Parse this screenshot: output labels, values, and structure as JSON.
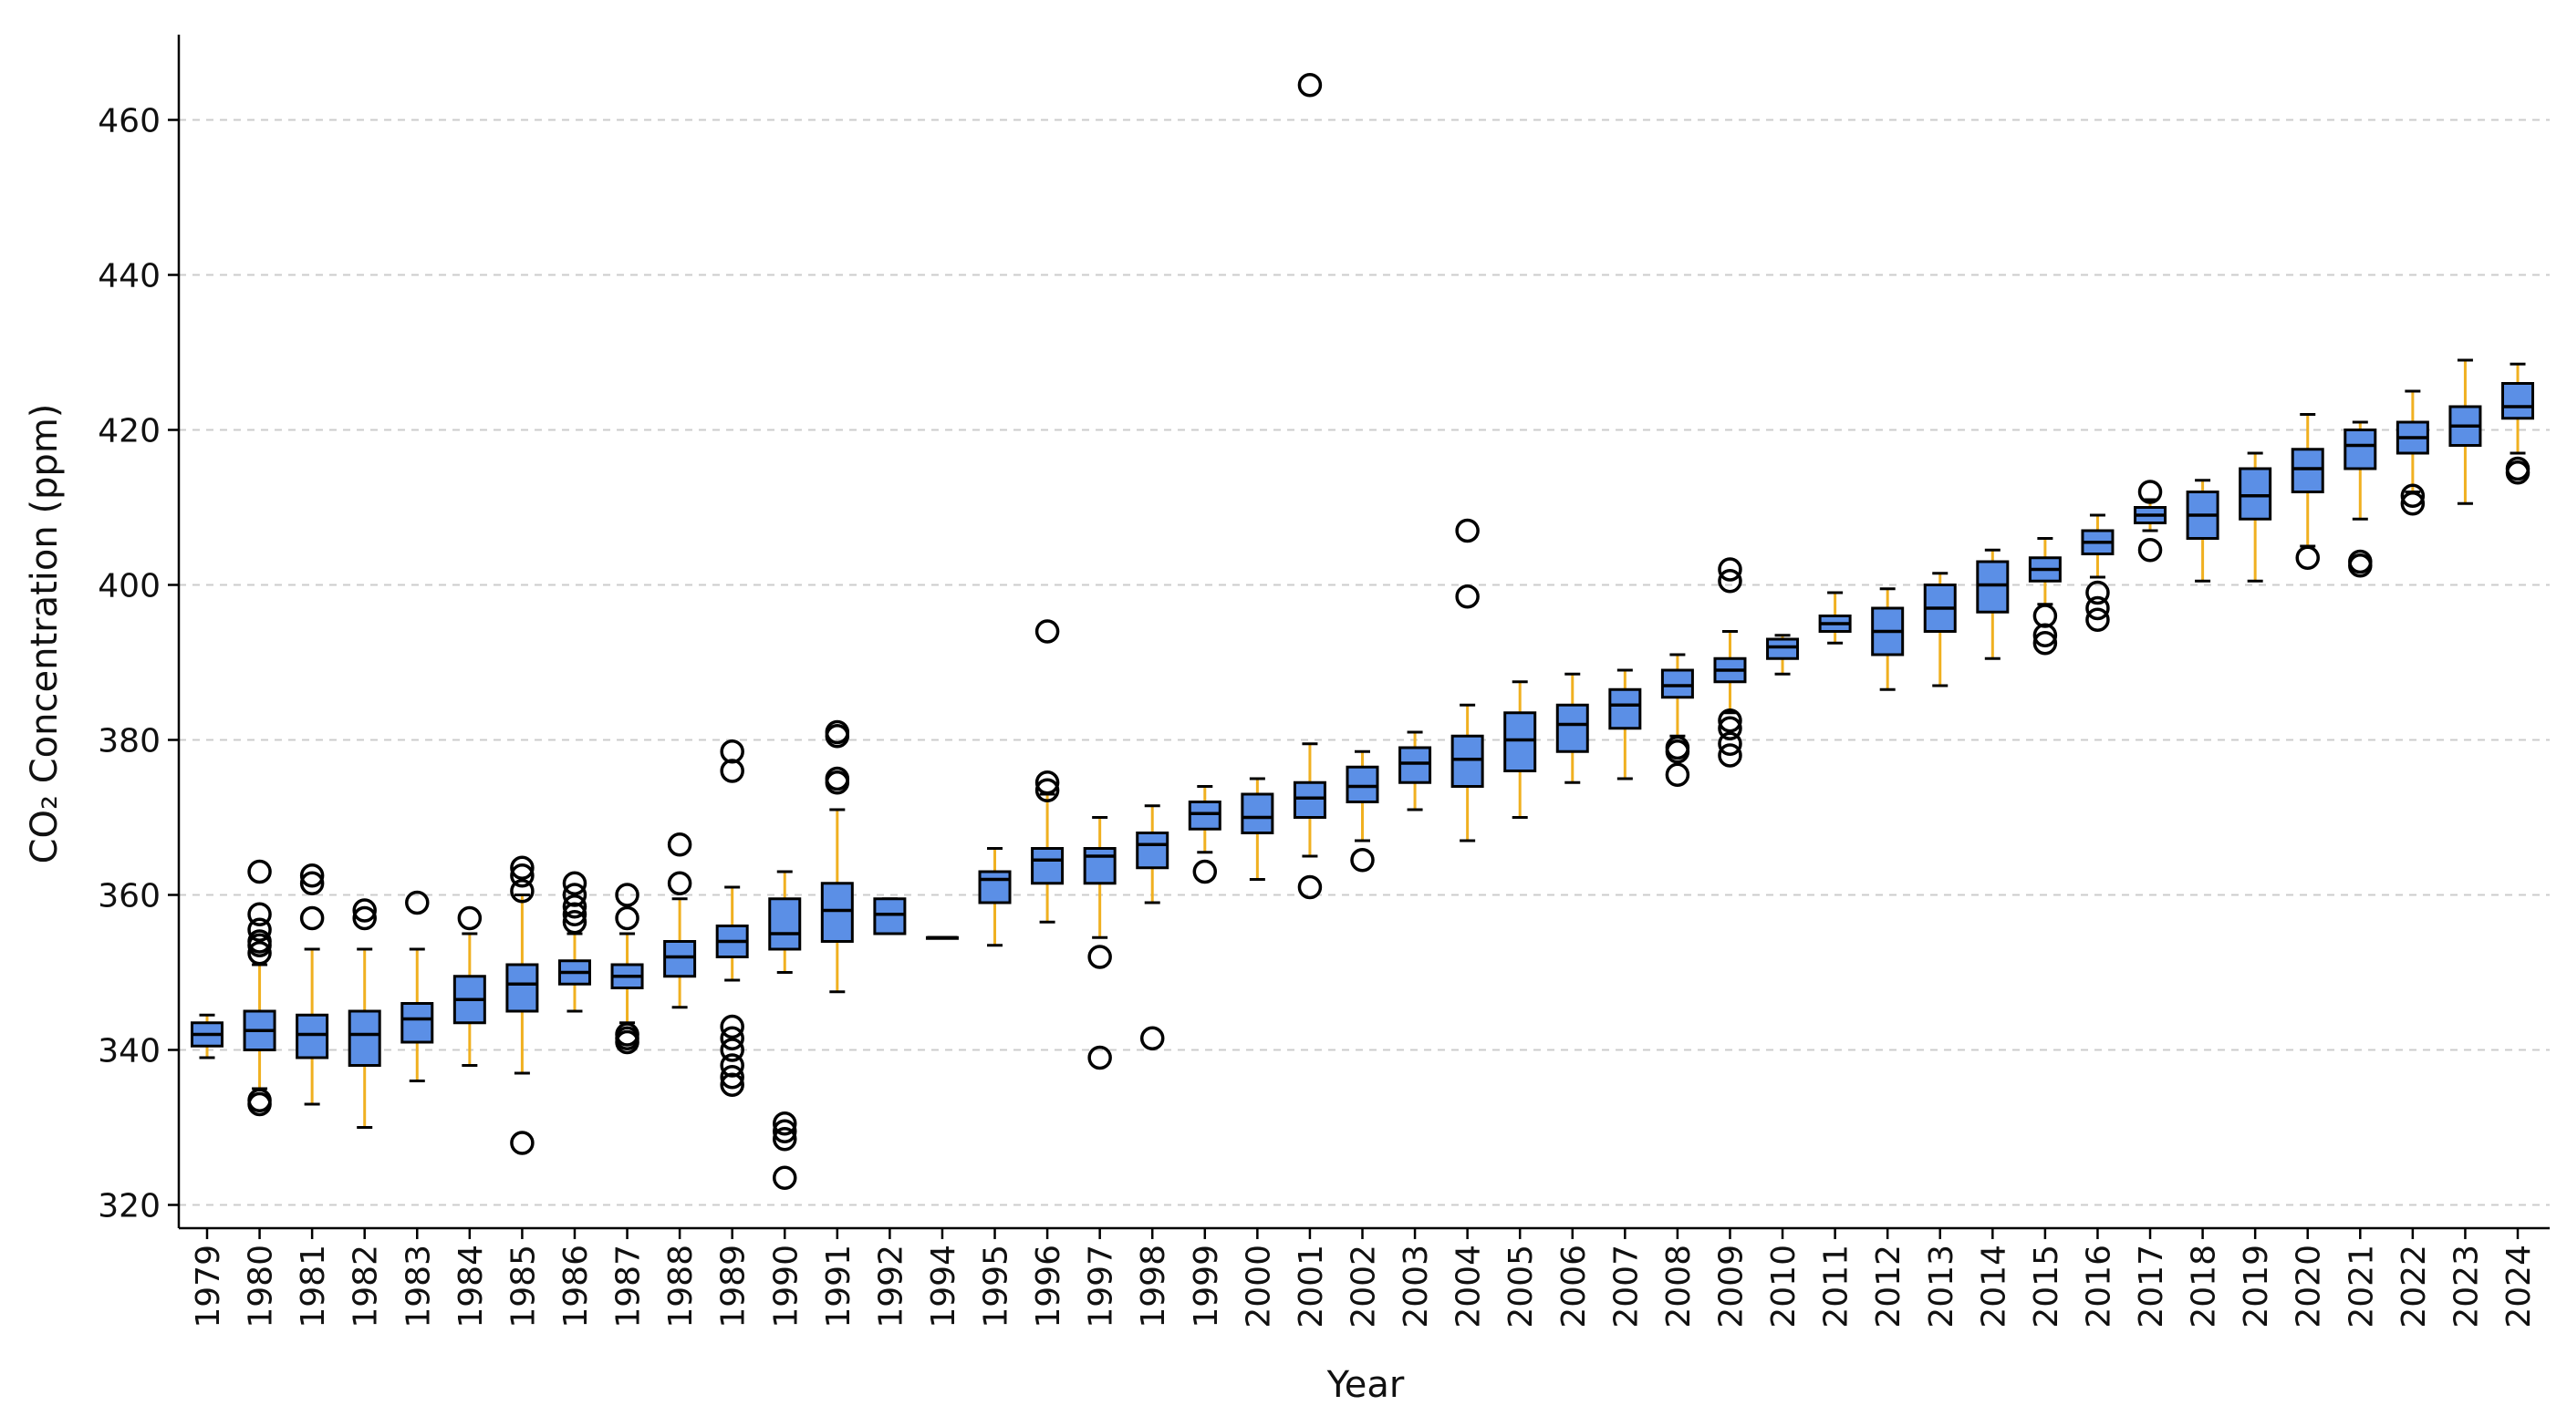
{
  "chart_data": {
    "type": "boxplot",
    "title": "",
    "xlabel": "Year",
    "ylabel": "CO₂ Concentration (ppm)",
    "ylim": [
      317,
      471
    ],
    "yticks": [
      320,
      340,
      360,
      380,
      400,
      420,
      440,
      460
    ],
    "grid": "horizontal dashed",
    "colors": {
      "box_fill": "#5b8fe6",
      "whisker": "#f0b020",
      "cap": "#000000",
      "median": "#000000",
      "grid": "#cccccc"
    },
    "categories": [
      "1979",
      "1980",
      "1981",
      "1982",
      "1983",
      "1984",
      "1985",
      "1986",
      "1987",
      "1988",
      "1989",
      "1990",
      "1991",
      "1992",
      "1994",
      "1995",
      "1996",
      "1997",
      "1998",
      "1999",
      "2000",
      "2001",
      "2002",
      "2003",
      "2004",
      "2005",
      "2006",
      "2007",
      "2008",
      "2009",
      "2010",
      "2011",
      "2012",
      "2013",
      "2014",
      "2015",
      "2016",
      "2017",
      "2018",
      "2019",
      "2020",
      "2021",
      "2022",
      "2023",
      "2024"
    ],
    "boxes": [
      {
        "year": "1979",
        "whislo": 339.0,
        "q1": 340.5,
        "med": 342.0,
        "q3": 343.5,
        "whishi": 344.5,
        "fliers": []
      },
      {
        "year": "1980",
        "whislo": 335.0,
        "q1": 340.0,
        "med": 342.5,
        "q3": 345.0,
        "whishi": 351.0,
        "fliers": [
          333.0,
          333.5,
          352.5,
          353.5,
          354.0,
          355.5,
          357.5,
          363.0
        ]
      },
      {
        "year": "1981",
        "whislo": 333.0,
        "q1": 339.0,
        "med": 342.0,
        "q3": 344.5,
        "whishi": 353.0,
        "fliers": [
          357.0,
          361.5,
          362.5
        ]
      },
      {
        "year": "1982",
        "whislo": 330.0,
        "q1": 338.0,
        "med": 342.0,
        "q3": 345.0,
        "whishi": 353.0,
        "fliers": [
          357.0,
          358.0
        ]
      },
      {
        "year": "1983",
        "whislo": 336.0,
        "q1": 341.0,
        "med": 344.0,
        "q3": 346.0,
        "whishi": 353.0,
        "fliers": [
          359.0
        ]
      },
      {
        "year": "1984",
        "whislo": 338.0,
        "q1": 343.5,
        "med": 346.5,
        "q3": 349.5,
        "whishi": 355.0,
        "fliers": [
          357.0
        ]
      },
      {
        "year": "1985",
        "whislo": 337.0,
        "q1": 345.0,
        "med": 348.5,
        "q3": 351.0,
        "whishi": 360.0,
        "fliers": [
          328.0,
          360.5,
          362.5,
          363.5
        ]
      },
      {
        "year": "1986",
        "whislo": 345.0,
        "q1": 348.5,
        "med": 350.0,
        "q3": 351.5,
        "whishi": 355.0,
        "fliers": [
          356.5,
          357.5,
          358.5,
          360.0,
          361.5
        ]
      },
      {
        "year": "1987",
        "whislo": 343.5,
        "q1": 348.0,
        "med": 349.5,
        "q3": 351.0,
        "whishi": 355.0,
        "fliers": [
          341.0,
          341.5,
          342.0,
          357.0,
          360.0
        ]
      },
      {
        "year": "1988",
        "whislo": 345.5,
        "q1": 349.5,
        "med": 352.0,
        "q3": 354.0,
        "whishi": 359.5,
        "fliers": [
          361.5,
          366.5
        ]
      },
      {
        "year": "1989",
        "whislo": 349.0,
        "q1": 352.0,
        "med": 354.0,
        "q3": 356.0,
        "whishi": 361.0,
        "fliers": [
          335.5,
          336.5,
          338.0,
          340.0,
          341.5,
          343.0,
          376.0,
          378.5
        ]
      },
      {
        "year": "1990",
        "whislo": 350.0,
        "q1": 353.0,
        "med": 355.0,
        "q3": 359.5,
        "whishi": 363.0,
        "fliers": [
          323.5,
          328.5,
          329.5,
          330.5
        ]
      },
      {
        "year": "1991",
        "whislo": 347.5,
        "q1": 354.0,
        "med": 358.0,
        "q3": 361.5,
        "whishi": 371.0,
        "fliers": [
          374.5,
          375.0,
          380.5,
          381.0
        ]
      },
      {
        "year": "1992",
        "whislo": 355.0,
        "q1": 355.0,
        "med": 357.5,
        "q3": 359.5,
        "whishi": 359.5,
        "fliers": []
      },
      {
        "year": "1994",
        "whislo": 354.5,
        "q1": 354.5,
        "med": 354.5,
        "q3": 354.5,
        "whishi": 354.5,
        "fliers": []
      },
      {
        "year": "1995",
        "whislo": 353.5,
        "q1": 359.0,
        "med": 362.0,
        "q3": 363.0,
        "whishi": 366.0,
        "fliers": []
      },
      {
        "year": "1996",
        "whislo": 356.5,
        "q1": 361.5,
        "med": 364.5,
        "q3": 366.0,
        "whishi": 373.0,
        "fliers": [
          373.5,
          374.5,
          394.0
        ]
      },
      {
        "year": "1997",
        "whislo": 354.5,
        "q1": 361.5,
        "med": 365.0,
        "q3": 366.0,
        "whishi": 370.0,
        "fliers": [
          339.0,
          352.0
        ]
      },
      {
        "year": "1998",
        "whislo": 359.0,
        "q1": 363.5,
        "med": 366.5,
        "q3": 368.0,
        "whishi": 371.5,
        "fliers": [
          341.5
        ]
      },
      {
        "year": "1999",
        "whislo": 365.5,
        "q1": 368.5,
        "med": 370.5,
        "q3": 372.0,
        "whishi": 374.0,
        "fliers": [
          363.0
        ]
      },
      {
        "year": "2000",
        "whislo": 362.0,
        "q1": 368.0,
        "med": 370.0,
        "q3": 373.0,
        "whishi": 375.0,
        "fliers": []
      },
      {
        "year": "2001",
        "whislo": 365.0,
        "q1": 370.0,
        "med": 372.5,
        "q3": 374.5,
        "whishi": 379.5,
        "fliers": [
          361.0,
          464.5
        ]
      },
      {
        "year": "2002",
        "whislo": 367.0,
        "q1": 372.0,
        "med": 374.0,
        "q3": 376.5,
        "whishi": 378.5,
        "fliers": [
          364.5
        ]
      },
      {
        "year": "2003",
        "whislo": 371.0,
        "q1": 374.5,
        "med": 377.0,
        "q3": 379.0,
        "whishi": 381.0,
        "fliers": []
      },
      {
        "year": "2004",
        "whislo": 367.0,
        "q1": 374.0,
        "med": 377.5,
        "q3": 380.5,
        "whishi": 384.5,
        "fliers": [
          398.5,
          407.0
        ]
      },
      {
        "year": "2005",
        "whislo": 370.0,
        "q1": 376.0,
        "med": 380.0,
        "q3": 383.5,
        "whishi": 387.5,
        "fliers": []
      },
      {
        "year": "2006",
        "whislo": 374.5,
        "q1": 378.5,
        "med": 382.0,
        "q3": 384.5,
        "whishi": 388.5,
        "fliers": []
      },
      {
        "year": "2007",
        "whislo": 375.0,
        "q1": 381.5,
        "med": 384.5,
        "q3": 386.5,
        "whishi": 389.0,
        "fliers": []
      },
      {
        "year": "2008",
        "whislo": 380.5,
        "q1": 385.5,
        "med": 387.0,
        "q3": 389.0,
        "whishi": 391.0,
        "fliers": [
          375.5,
          378.5,
          379.0
        ]
      },
      {
        "year": "2009",
        "whislo": 383.5,
        "q1": 387.5,
        "med": 389.0,
        "q3": 390.5,
        "whishi": 394.0,
        "fliers": [
          378.0,
          379.5,
          381.5,
          382.5,
          400.5,
          402.0
        ]
      },
      {
        "year": "2010",
        "whislo": 388.5,
        "q1": 390.5,
        "med": 392.0,
        "q3": 393.0,
        "whishi": 393.5,
        "fliers": []
      },
      {
        "year": "2011",
        "whislo": 392.5,
        "q1": 394.0,
        "med": 395.0,
        "q3": 396.0,
        "whishi": 399.0,
        "fliers": []
      },
      {
        "year": "2012",
        "whislo": 386.5,
        "q1": 391.0,
        "med": 394.0,
        "q3": 397.0,
        "whishi": 399.5,
        "fliers": []
      },
      {
        "year": "2013",
        "whislo": 387.0,
        "q1": 394.0,
        "med": 397.0,
        "q3": 400.0,
        "whishi": 401.5,
        "fliers": []
      },
      {
        "year": "2014",
        "whislo": 390.5,
        "q1": 396.5,
        "med": 400.0,
        "q3": 403.0,
        "whishi": 404.5,
        "fliers": []
      },
      {
        "year": "2015",
        "whislo": 397.5,
        "q1": 400.5,
        "med": 402.0,
        "q3": 403.5,
        "whishi": 406.0,
        "fliers": [
          392.5,
          393.5,
          396.0
        ]
      },
      {
        "year": "2016",
        "whislo": 401.0,
        "q1": 404.0,
        "med": 405.5,
        "q3": 407.0,
        "whishi": 409.0,
        "fliers": [
          395.5,
          397.0,
          399.0
        ]
      },
      {
        "year": "2017",
        "whislo": 407.0,
        "q1": 408.0,
        "med": 409.0,
        "q3": 410.0,
        "whishi": 411.0,
        "fliers": [
          404.5,
          412.0
        ]
      },
      {
        "year": "2018",
        "whislo": 400.5,
        "q1": 406.0,
        "med": 409.0,
        "q3": 412.0,
        "whishi": 413.5,
        "fliers": []
      },
      {
        "year": "2019",
        "whislo": 400.5,
        "q1": 408.5,
        "med": 411.5,
        "q3": 415.0,
        "whishi": 417.0,
        "fliers": []
      },
      {
        "year": "2020",
        "whislo": 405.0,
        "q1": 412.0,
        "med": 415.0,
        "q3": 417.5,
        "whishi": 422.0,
        "fliers": [
          403.5
        ]
      },
      {
        "year": "2021",
        "whislo": 408.5,
        "q1": 415.0,
        "med": 418.0,
        "q3": 420.0,
        "whishi": 421.0,
        "fliers": [
          402.5,
          403.0
        ]
      },
      {
        "year": "2022",
        "whislo": 412.0,
        "q1": 417.0,
        "med": 419.0,
        "q3": 421.0,
        "whishi": 425.0,
        "fliers": [
          410.5,
          411.5
        ]
      },
      {
        "year": "2023",
        "whislo": 410.5,
        "q1": 418.0,
        "med": 420.5,
        "q3": 423.0,
        "whishi": 429.0,
        "fliers": []
      },
      {
        "year": "2024",
        "whislo": 417.0,
        "q1": 421.5,
        "med": 423.0,
        "q3": 426.0,
        "whishi": 428.5,
        "fliers": [
          414.5,
          415.0
        ]
      }
    ]
  }
}
